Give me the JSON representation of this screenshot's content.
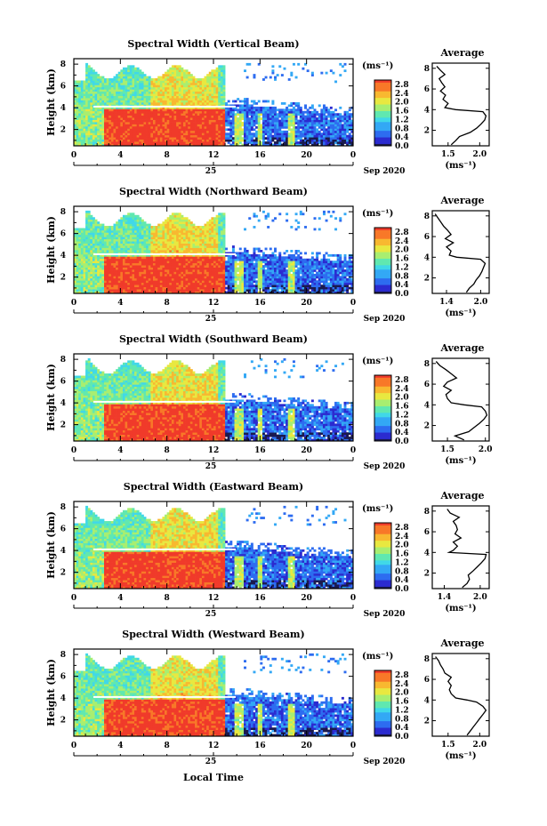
{
  "figure": {
    "x_axis_label": "Local Time",
    "date_label": "Sep 2020",
    "date_day": "25"
  },
  "colorbar": {
    "unit_label": "(ms⁻¹)",
    "ticks": [
      "0.0",
      "0.4",
      "0.8",
      "1.2",
      "1.6",
      "2.0",
      "2.4",
      "2.8"
    ],
    "range": [
      0,
      3.0
    ],
    "colormap": [
      "#1a1a4e",
      "#2b2bd0",
      "#2d6cf0",
      "#33a8f5",
      "#40d8e8",
      "#60e8b0",
      "#a8ee70",
      "#e8e840",
      "#f8b830",
      "#f87828",
      "#f03a2a"
    ]
  },
  "chart_data": [
    {
      "type": "heatmap",
      "title": "Spectral Width (Vertical Beam)",
      "ylabel": "Height (km)",
      "x_ticks": [
        "0",
        "4",
        "8",
        "12",
        "16",
        "20",
        "0"
      ],
      "y_ticks": [
        "2",
        "4",
        "6",
        "8"
      ],
      "xlim": [
        0,
        24
      ],
      "ylim": [
        0.5,
        8.5
      ],
      "profile": {
        "title": "Average",
        "xlabel": "(ms⁻¹)",
        "x_ticks": [
          "1.5",
          "2.0"
        ],
        "xlim": [
          1.25,
          2.15
        ],
        "y_ticks": [
          "2",
          "4",
          "6",
          "8"
        ],
        "height": [
          0.6,
          1.0,
          1.4,
          1.8,
          2.2,
          2.6,
          3.0,
          3.4,
          3.8,
          4.0,
          4.2,
          4.6,
          5.0,
          5.4,
          5.8,
          6.2,
          6.6,
          7.0,
          7.4,
          7.8,
          8.2
        ],
        "value": [
          1.55,
          1.62,
          1.68,
          1.85,
          1.95,
          2.02,
          2.08,
          2.1,
          2.05,
          1.62,
          1.45,
          1.5,
          1.42,
          1.46,
          1.38,
          1.45,
          1.4,
          1.36,
          1.45,
          1.38,
          1.32
        ]
      }
    },
    {
      "type": "heatmap",
      "title": "Spectral Width (Northward Beam)",
      "ylabel": "Height (km)",
      "x_ticks": [
        "0",
        "4",
        "8",
        "12",
        "16",
        "20",
        "0"
      ],
      "y_ticks": [
        "2",
        "4",
        "6",
        "8"
      ],
      "xlim": [
        0,
        24
      ],
      "ylim": [
        0.5,
        8.5
      ],
      "profile": {
        "title": "Average",
        "xlabel": "(ms⁻¹)",
        "x_ticks": [
          "1.4",
          "2.0"
        ],
        "xlim": [
          1.15,
          2.15
        ],
        "y_ticks": [
          "2",
          "4",
          "6",
          "8"
        ],
        "height": [
          0.6,
          1.0,
          1.4,
          1.8,
          2.2,
          2.6,
          3.0,
          3.4,
          3.8,
          4.0,
          4.2,
          4.6,
          5.0,
          5.4,
          5.8,
          6.2,
          6.6,
          7.0,
          7.4,
          7.8,
          8.2
        ],
        "value": [
          1.75,
          1.8,
          1.88,
          1.92,
          1.98,
          2.02,
          2.05,
          2.08,
          2.0,
          1.58,
          1.45,
          1.48,
          1.4,
          1.52,
          1.38,
          1.48,
          1.42,
          1.35,
          1.3,
          1.25,
          1.2
        ]
      }
    },
    {
      "type": "heatmap",
      "title": "Spectral Width (Southward Beam)",
      "ylabel": "Height (km)",
      "x_ticks": [
        "0",
        "4",
        "8",
        "12",
        "16",
        "20",
        "0"
      ],
      "y_ticks": [
        "2",
        "4",
        "6",
        "8"
      ],
      "xlim": [
        0,
        24
      ],
      "ylim": [
        0.5,
        8.5
      ],
      "profile": {
        "title": "Average",
        "xlabel": "(ms⁻¹)",
        "x_ticks": [
          "1.5",
          "2.0"
        ],
        "xlim": [
          1.3,
          2.05
        ],
        "y_ticks": [
          "2",
          "4",
          "6",
          "8"
        ],
        "height": [
          0.6,
          1.0,
          1.4,
          1.8,
          2.2,
          2.6,
          3.0,
          3.4,
          3.8,
          4.0,
          4.2,
          4.6,
          5.0,
          5.4,
          5.8,
          6.2,
          6.6,
          7.0,
          7.4,
          7.8,
          8.2
        ],
        "value": [
          1.72,
          1.6,
          1.78,
          1.85,
          1.92,
          1.98,
          2.02,
          2.0,
          1.95,
          1.72,
          1.55,
          1.5,
          1.48,
          1.55,
          1.45,
          1.5,
          1.62,
          1.55,
          1.48,
          1.4,
          1.35
        ]
      }
    },
    {
      "type": "heatmap",
      "title": "Spectral Width (Eastward Beam)",
      "ylabel": "Height (km)",
      "x_ticks": [
        "0",
        "4",
        "8",
        "12",
        "16",
        "20",
        "0"
      ],
      "y_ticks": [
        "2",
        "4",
        "6",
        "8"
      ],
      "xlim": [
        0,
        24
      ],
      "ylim": [
        0.5,
        8.5
      ],
      "profile": {
        "title": "Average",
        "xlabel": "(ms⁻¹)",
        "x_ticks": [
          "1.4",
          "2.0"
        ],
        "xlim": [
          1.2,
          2.15
        ],
        "y_ticks": [
          "2",
          "4",
          "6",
          "8"
        ],
        "height": [
          0.6,
          1.0,
          1.4,
          1.8,
          2.2,
          2.6,
          3.0,
          3.4,
          3.8,
          4.0,
          4.2,
          4.6,
          5.0,
          5.4,
          5.8,
          6.2,
          6.6,
          7.0,
          7.4,
          7.8,
          8.2
        ],
        "value": [
          1.7,
          1.78,
          1.82,
          1.8,
          1.88,
          1.95,
          2.02,
          2.08,
          2.1,
          1.48,
          1.55,
          1.62,
          1.55,
          1.68,
          1.58,
          1.62,
          1.6,
          1.55,
          1.65,
          1.5,
          1.45
        ]
      }
    },
    {
      "type": "heatmap",
      "title": "Spectral Width (Westward Beam)",
      "ylabel": "Height (km)",
      "x_ticks": [
        "0",
        "4",
        "8",
        "12",
        "16",
        "20",
        "0"
      ],
      "y_ticks": [
        "2",
        "4",
        "6",
        "8"
      ],
      "xlim": [
        0,
        24
      ],
      "ylim": [
        0.5,
        8.5
      ],
      "profile": {
        "title": "Average",
        "xlabel": "(ms⁻¹)",
        "x_ticks": [
          "1.5",
          "2.0"
        ],
        "xlim": [
          1.25,
          2.15
        ],
        "y_ticks": [
          "2",
          "4",
          "6",
          "8"
        ],
        "height": [
          0.6,
          1.0,
          1.4,
          1.8,
          2.2,
          2.6,
          3.0,
          3.4,
          3.8,
          4.0,
          4.2,
          4.6,
          5.0,
          5.4,
          5.8,
          6.2,
          6.6,
          7.0,
          7.4,
          7.8,
          8.2
        ],
        "value": [
          1.8,
          1.85,
          1.9,
          1.95,
          2.0,
          2.05,
          2.1,
          2.05,
          1.95,
          1.8,
          1.62,
          1.55,
          1.52,
          1.55,
          1.5,
          1.55,
          1.45,
          1.42,
          1.38,
          1.35,
          1.3
        ]
      }
    }
  ]
}
